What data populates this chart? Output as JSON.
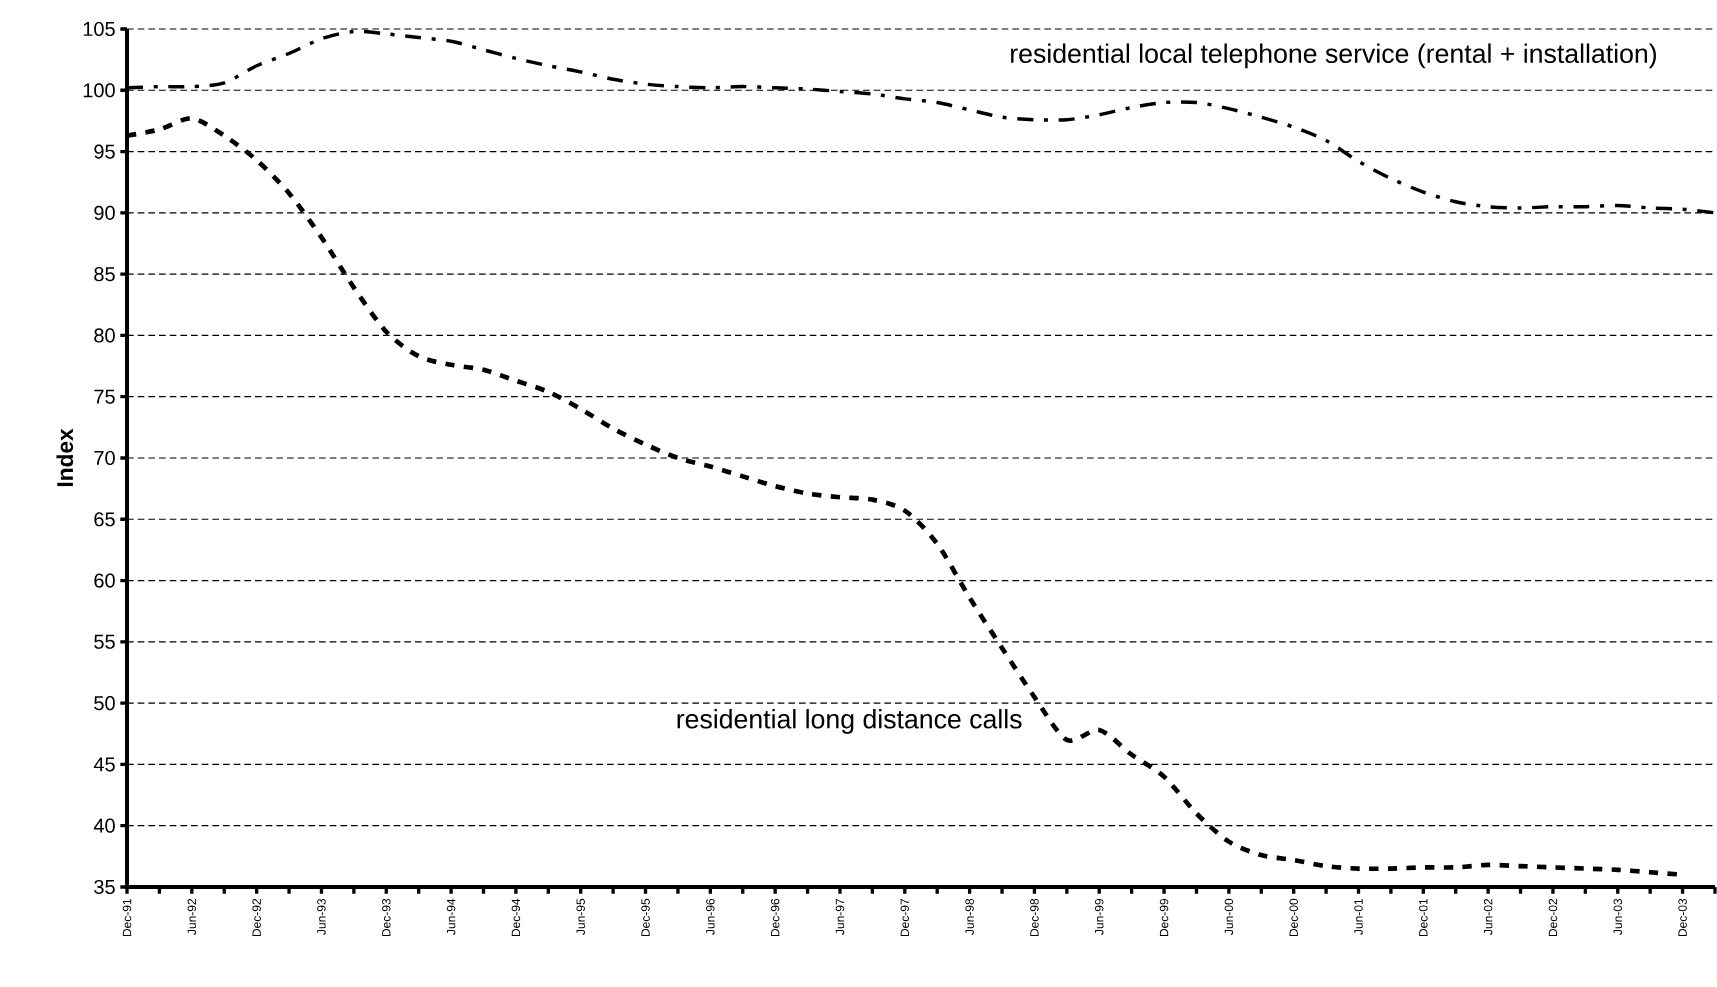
{
  "chart_data": {
    "type": "line",
    "ylabel": "Index",
    "grid": "y",
    "categories": [
      "Dec-91",
      null,
      "Jun-92",
      null,
      "Dec-92",
      null,
      "Jun-93",
      null,
      "Dec-93",
      null,
      "Jun-94",
      null,
      "Dec-94",
      null,
      "Jun-95",
      null,
      "Dec-95",
      null,
      "Jun-96",
      null,
      "Dec-96",
      null,
      "Jun-97",
      null,
      "Dec-97",
      null,
      "Jun-98",
      null,
      "Dec-98",
      null,
      "Jun-99",
      null,
      "Dec-99",
      null,
      "Jun-00",
      null,
      "Dec-00",
      null,
      "Jun-01",
      null,
      "Dec-01",
      null,
      "Jun-02",
      null,
      "Dec-02",
      null,
      "Jun-03",
      null,
      "Dec-03",
      null
    ],
    "ylim": [
      35,
      105
    ],
    "yticks": [
      35,
      40,
      45,
      50,
      55,
      60,
      65,
      70,
      75,
      80,
      85,
      90,
      95,
      100,
      105
    ],
    "series": [
      {
        "name": "residential local telephone service (rental + installation)",
        "color": "#000000",
        "line_style": "dashdot",
        "values": [
          100.2,
          100.3,
          100.3,
          100.6,
          102,
          103,
          104.2,
          104.8,
          104.6,
          104.3,
          104,
          103.3,
          102.6,
          102,
          101.5,
          100.9,
          100.5,
          100.3,
          100.2,
          100.3,
          100.2,
          100.1,
          99.9,
          99.7,
          99.3,
          99,
          98.4,
          97.8,
          97.6,
          97.6,
          98,
          98.6,
          99,
          99,
          98.5,
          97.8,
          97,
          95.9,
          94.2,
          92.8,
          91.7,
          90.9,
          90.5,
          90.4,
          90.5,
          90.5,
          90.6,
          90.4,
          90.3,
          90
        ]
      },
      {
        "name": "residential long distance calls",
        "color": "#000000",
        "line_style": "dashed",
        "values": [
          96.3,
          96.8,
          97.7,
          96.3,
          94.3,
          91.6,
          88,
          83.9,
          80.3,
          78.3,
          77.6,
          77.2,
          76.3,
          75.4,
          74,
          72.4,
          71.1,
          70,
          69.3,
          68.5,
          67.7,
          67.1,
          66.8,
          66.6,
          65.7,
          63,
          58.6,
          54.5,
          50.5,
          47,
          47.8,
          45.8,
          44,
          41,
          38.7,
          37.6,
          37.2,
          36.7,
          36.5,
          36.5,
          36.6,
          36.6,
          36.8,
          36.7,
          36.6,
          36.5,
          36.4,
          36.2,
          36,
          null
        ]
      }
    ]
  }
}
